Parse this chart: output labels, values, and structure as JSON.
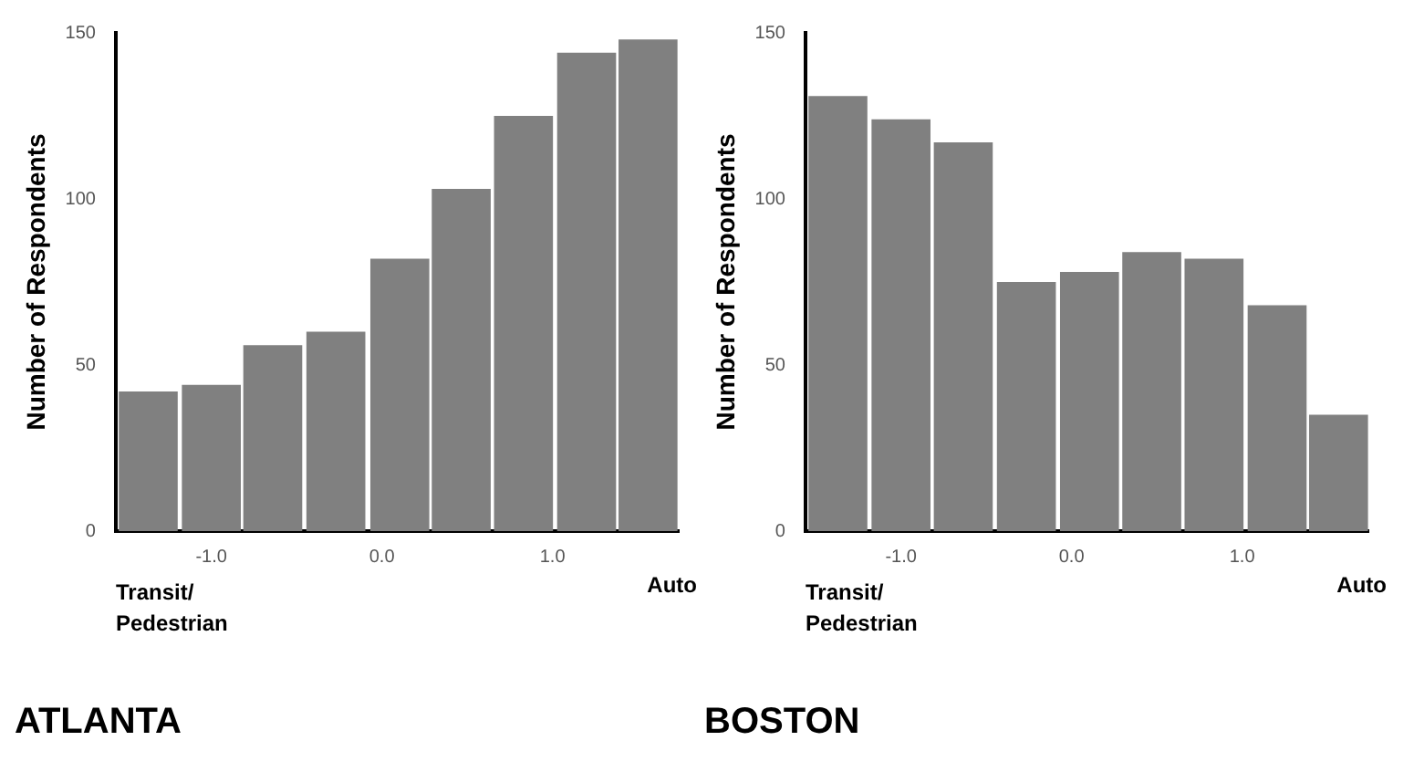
{
  "chart_data": [
    {
      "type": "histogram",
      "title": "ATLANTA",
      "ylabel": "Number of Respondents",
      "bins": [
        -1.56,
        -1.18,
        -0.82,
        -0.46,
        -0.08,
        0.29,
        0.64,
        1.02,
        1.38,
        1.74
      ],
      "values": [
        42,
        44,
        56,
        60,
        82,
        103,
        125,
        144,
        148
      ],
      "color": "#808080",
      "xlim": [
        -1.56,
        1.74
      ],
      "xticks": [
        {
          "value": -1,
          "label": "-1.0"
        },
        {
          "value": 0,
          "label": "0.0"
        },
        {
          "value": 1,
          "label": "1.0"
        }
      ],
      "ylim": [
        0,
        150
      ],
      "yticks": [
        0,
        50,
        100,
        150
      ],
      "grid": false,
      "legend": false,
      "annotations": [
        "Transit/ Pedestrian",
        "Auto"
      ]
    },
    {
      "type": "histogram",
      "title": "BOSTON",
      "ylabel": "Number of Respondents",
      "bins": [
        -1.56,
        -1.18,
        -0.82,
        -0.45,
        -0.08,
        0.29,
        0.65,
        1.02,
        1.39,
        1.74
      ],
      "values": [
        131,
        124,
        117,
        75,
        78,
        84,
        82,
        68,
        35
      ],
      "color": "#808080",
      "xlim": [
        -1.56,
        1.74
      ],
      "xticks": [
        {
          "value": -1,
          "label": "-1.0"
        },
        {
          "value": 0,
          "label": "0.0"
        },
        {
          "value": 1,
          "label": "1.0"
        }
      ],
      "ylim": [
        0,
        150
      ],
      "yticks": [
        0,
        50,
        100,
        150
      ],
      "grid": false,
      "legend": false,
      "annotations": [
        "Transit/ Pedestrian",
        "Auto"
      ]
    }
  ]
}
